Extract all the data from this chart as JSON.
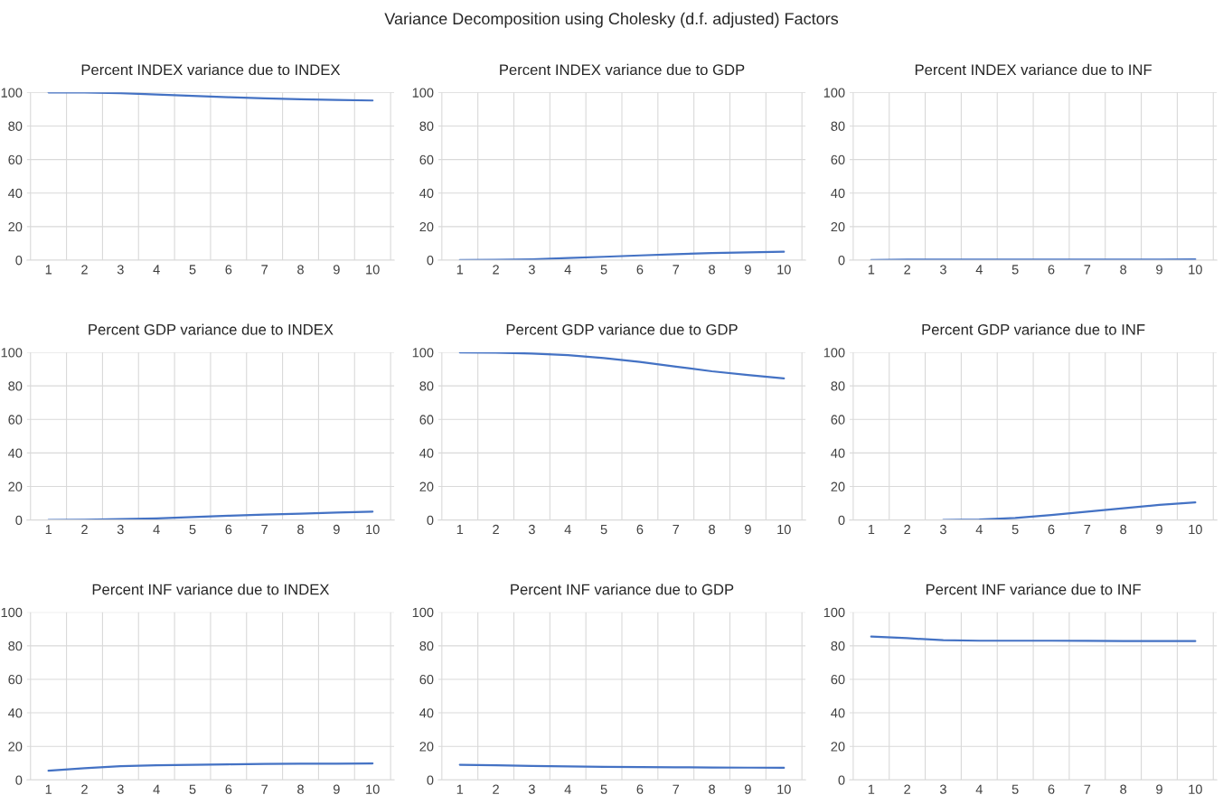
{
  "chart_data": [
    {
      "type": "line",
      "title": "Percent INDEX variance due to INDEX",
      "annotations": [
        "Variance Decomposition using Cholesky (d.f. adjusted) Factors"
      ],
      "categories": [
        "1",
        "2",
        "3",
        "4",
        "5",
        "6",
        "7",
        "8",
        "9",
        "10"
      ],
      "values": [
        100,
        100,
        99.6,
        98.8,
        98,
        97.2,
        96.5,
        96,
        95.6,
        95.2
      ],
      "color": "#4472c4",
      "ylim": [
        0,
        100
      ],
      "yticks": [
        0,
        20,
        40,
        60,
        80,
        100
      ],
      "grid": true
    },
    {
      "type": "line",
      "title": "Percent INDEX variance due to GDP",
      "categories": [
        "1",
        "2",
        "3",
        "4",
        "5",
        "6",
        "7",
        "8",
        "9",
        "10"
      ],
      "values": [
        0,
        0.2,
        0.5,
        1.2,
        2,
        2.8,
        3.6,
        4.2,
        4.6,
        5
      ],
      "color": "#4472c4",
      "ylim": [
        0,
        100
      ],
      "yticks": [
        0,
        20,
        40,
        60,
        80,
        100
      ],
      "grid": true
    },
    {
      "type": "line",
      "title": "Percent INDEX variance due to INF",
      "categories": [
        "1",
        "2",
        "3",
        "4",
        "5",
        "6",
        "7",
        "8",
        "9",
        "10"
      ],
      "values": [
        0,
        0.3,
        0.3,
        0.3,
        0.3,
        0.3,
        0.3,
        0.3,
        0.3,
        0.5
      ],
      "color": "#4472c4",
      "ylim": [
        0,
        100
      ],
      "yticks": [
        0,
        20,
        40,
        60,
        80,
        100
      ],
      "grid": true
    },
    {
      "type": "line",
      "title": "Percent GDP variance due to INDEX",
      "categories": [
        "1",
        "2",
        "3",
        "4",
        "5",
        "6",
        "7",
        "8",
        "9",
        "10"
      ],
      "values": [
        0,
        0.2,
        0.5,
        1,
        1.8,
        2.5,
        3.2,
        3.8,
        4.4,
        5
      ],
      "color": "#4472c4",
      "ylim": [
        0,
        100
      ],
      "yticks": [
        0,
        20,
        40,
        60,
        80,
        100
      ],
      "grid": true
    },
    {
      "type": "line",
      "title": "Percent GDP variance due to GDP",
      "categories": [
        "1",
        "2",
        "3",
        "4",
        "5",
        "6",
        "7",
        "8",
        "9",
        "10"
      ],
      "values": [
        100,
        99.8,
        99.3,
        98.3,
        96.6,
        94.3,
        91.5,
        88.7,
        86.5,
        84.5
      ],
      "color": "#4472c4",
      "ylim": [
        0,
        100
      ],
      "yticks": [
        0,
        20,
        40,
        60,
        80,
        100
      ],
      "grid": true
    },
    {
      "type": "line",
      "title": "Percent GDP variance due to INF",
      "categories": [
        "1",
        "2",
        "3",
        "4",
        "5",
        "6",
        "7",
        "8",
        "9",
        "10"
      ],
      "values": [
        null,
        null,
        0,
        0.3,
        1.2,
        3,
        5,
        7,
        9,
        10.5
      ],
      "color": "#4472c4",
      "ylim": [
        0,
        100
      ],
      "yticks": [
        0,
        20,
        40,
        60,
        80,
        100
      ],
      "grid": true
    },
    {
      "type": "line",
      "title": "Percent INF variance due to INDEX",
      "categories": [
        "1",
        "2",
        "3",
        "4",
        "5",
        "6",
        "7",
        "8",
        "9",
        "10"
      ],
      "values": [
        5.5,
        7,
        8.2,
        8.7,
        9,
        9.3,
        9.5,
        9.6,
        9.7,
        9.8
      ],
      "color": "#4472c4",
      "ylim": [
        0,
        100
      ],
      "yticks": [
        0,
        20,
        40,
        60,
        80,
        100
      ],
      "grid": true
    },
    {
      "type": "line",
      "title": "Percent INF variance due to GDP",
      "categories": [
        "1",
        "2",
        "3",
        "4",
        "5",
        "6",
        "7",
        "8",
        "9",
        "10"
      ],
      "values": [
        9,
        8.7,
        8.3,
        8,
        7.8,
        7.6,
        7.5,
        7.4,
        7.3,
        7.2
      ],
      "color": "#4472c4",
      "ylim": [
        0,
        100
      ],
      "yticks": [
        0,
        20,
        40,
        60,
        80,
        100
      ],
      "grid": true
    },
    {
      "type": "line",
      "title": "Percent INF variance due to INF",
      "categories": [
        "1",
        "2",
        "3",
        "4",
        "5",
        "6",
        "7",
        "8",
        "9",
        "10"
      ],
      "values": [
        85.5,
        84.5,
        83.3,
        83,
        83,
        83,
        82.9,
        82.8,
        82.8,
        82.8
      ],
      "color": "#4472c4",
      "ylim": [
        0,
        100
      ],
      "yticks": [
        0,
        20,
        40,
        60,
        80,
        100
      ],
      "grid": true
    }
  ]
}
